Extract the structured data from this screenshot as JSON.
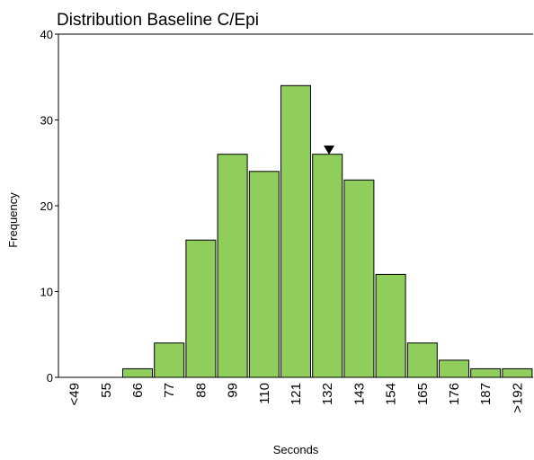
{
  "chart_data": {
    "type": "bar",
    "title": "Distribution Baseline C/Epi",
    "x_label": "Seconds",
    "y_label": "Frequency",
    "categories": [
      "<49",
      "55",
      "66",
      "77",
      "88",
      "99",
      "110",
      "121",
      "132",
      "143",
      "154",
      "165",
      "176",
      "187",
      ">192"
    ],
    "values": [
      0,
      0,
      1,
      4,
      16,
      26,
      24,
      34,
      26,
      23,
      12,
      4,
      2,
      1,
      1
    ],
    "color": "#8fce5a",
    "ylim": [
      0,
      40
    ],
    "yticks": [
      0,
      10,
      20,
      30,
      40
    ],
    "grid": false
  }
}
